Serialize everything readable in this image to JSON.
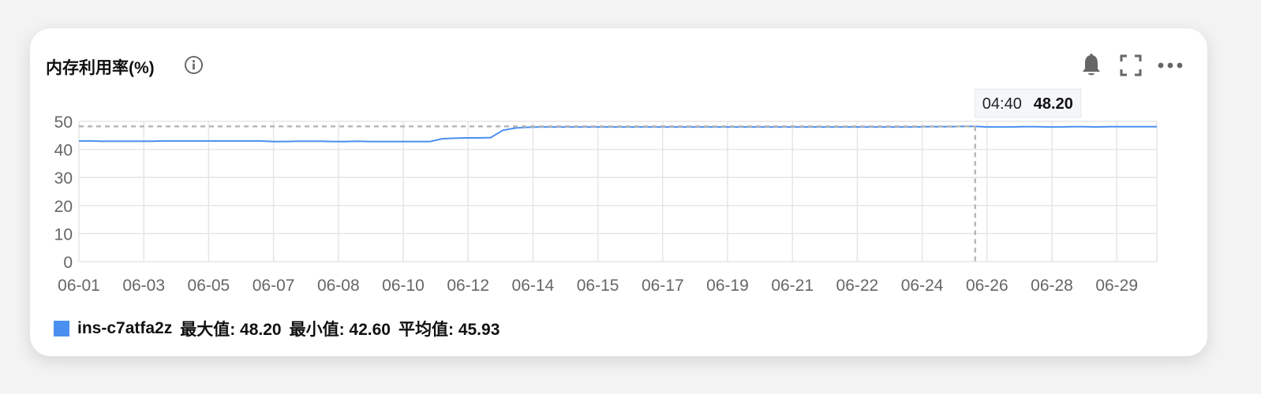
{
  "widget": {
    "title": "内存利用率(%)",
    "icons": {
      "info": "info-icon",
      "alarm": "bell-icon",
      "fullscreen": "fullscreen-icon",
      "more": "more-icon"
    }
  },
  "legend": {
    "series_name": "ins-c7atfa2z",
    "color": "#4b8ff0",
    "max_text": "最大值: 48.20",
    "min_text": "最小值: 42.60",
    "avg_text": "平均值: 45.93"
  },
  "chart_data": {
    "type": "line",
    "x_tick_labels": [
      "06-01",
      "06-03",
      "06-05",
      "06-07",
      "06-08",
      "06-10",
      "06-12",
      "06-14",
      "06-15",
      "06-17",
      "06-19",
      "06-21",
      "06-22",
      "06-24",
      "06-26",
      "06-28",
      "06-29"
    ],
    "y_ticks": [
      0,
      10,
      20,
      30,
      40,
      50
    ],
    "ylim": [
      0,
      50
    ],
    "grid": true,
    "series": [
      {
        "name": "ins-c7atfa2z",
        "color": "#4b8ff0",
        "values": [
          43.0,
          43.0,
          42.9,
          42.9,
          42.9,
          42.9,
          42.9,
          43.0,
          43.0,
          43.0,
          43.0,
          43.0,
          43.0,
          43.0,
          43.0,
          43.0,
          42.8,
          42.8,
          42.9,
          42.9,
          42.9,
          42.8,
          42.8,
          42.9,
          42.8,
          42.8,
          42.8,
          42.8,
          42.8,
          42.8,
          43.8,
          44.0,
          44.1,
          44.1,
          44.2,
          46.8,
          47.6,
          47.9,
          48.0,
          48.0,
          48.0,
          48.0,
          48.0,
          48.0,
          48.0,
          48.0,
          48.0,
          48.0,
          48.0,
          48.0,
          48.0,
          48.0,
          48.0,
          48.0,
          48.0,
          48.0,
          48.0,
          48.0,
          48.0,
          48.0,
          48.0,
          48.0,
          48.0,
          48.0,
          48.0,
          48.0,
          48.0,
          48.0,
          48.0,
          48.0,
          48.1,
          48.1,
          48.1,
          48.2,
          48.2,
          48.0,
          48.0,
          48.0,
          48.1,
          48.1,
          48.0,
          48.0,
          48.1,
          48.1,
          48.0,
          48.1,
          48.1,
          48.1,
          48.1,
          48.1
        ]
      }
    ],
    "tooltip": {
      "time": "04:40",
      "value": "48.20",
      "value_number": 48.2,
      "point_index": 74
    }
  }
}
